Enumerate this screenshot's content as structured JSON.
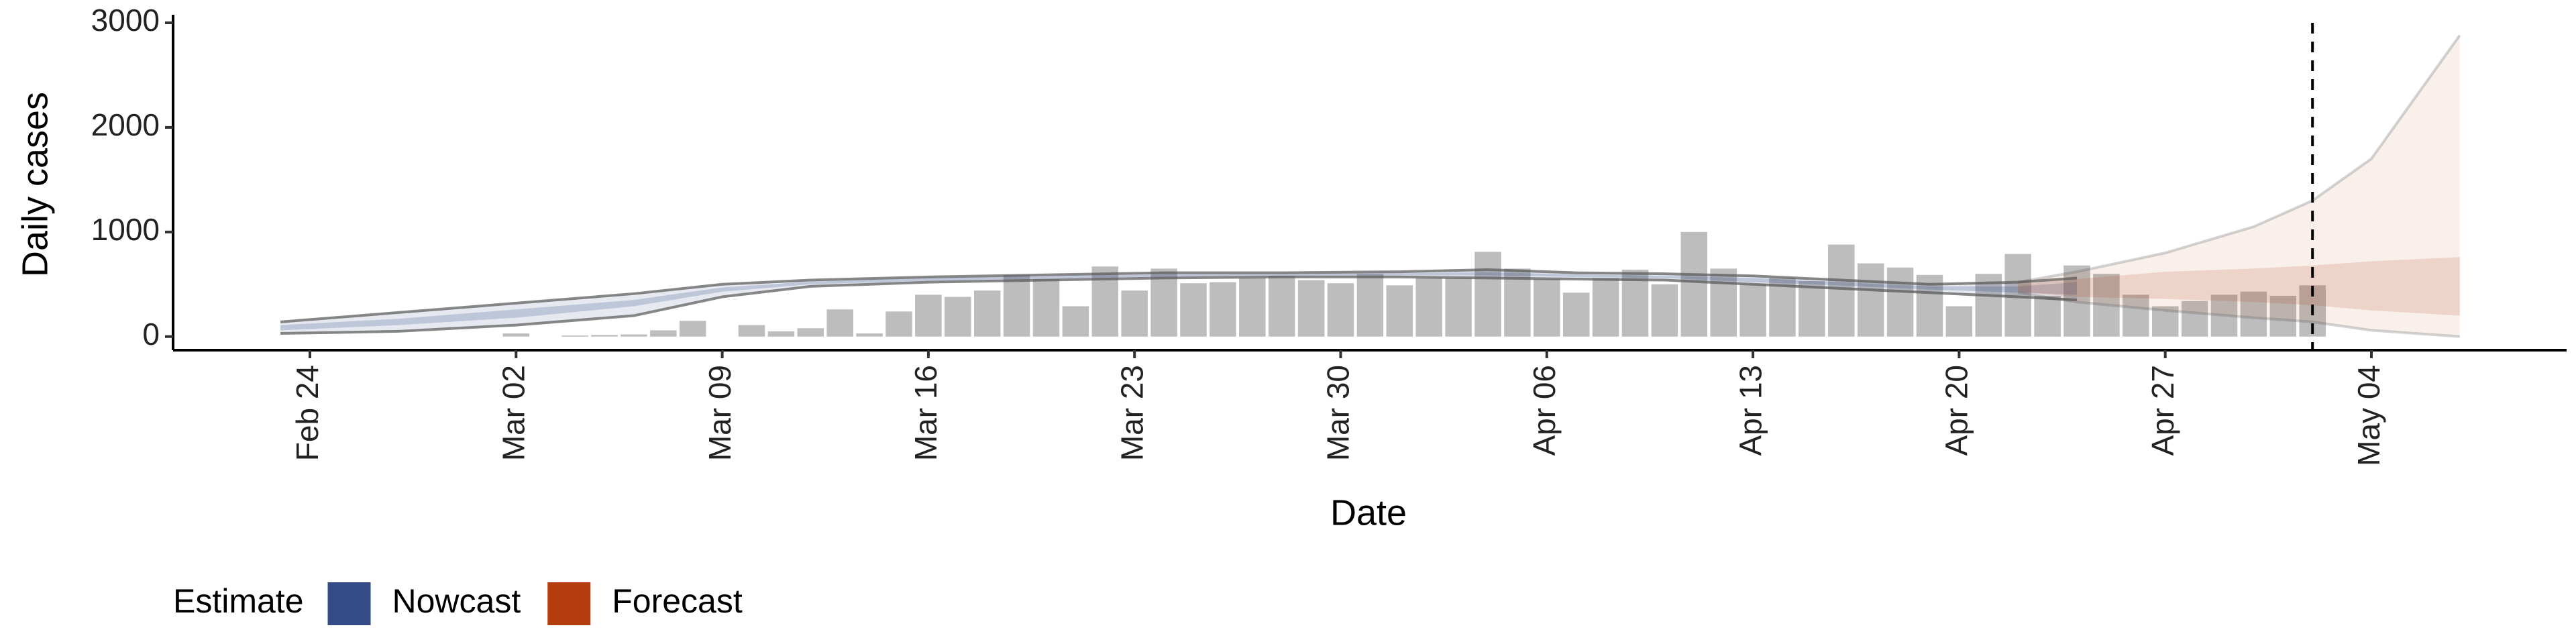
{
  "chart_data": {
    "type": "nowcast",
    "x_label": "Date",
    "y_label": "Daily cases",
    "ylim": [
      -130,
      3000
    ],
    "yticks": [
      0,
      1000,
      2000,
      3000
    ],
    "categories": [
      "Feb 22",
      "Feb 23",
      "Feb 24",
      "Feb 25",
      "Feb 26",
      "Feb 27",
      "Feb 28",
      "Feb 29",
      "Mar 01",
      "Mar 02",
      "Mar 03",
      "Mar 04",
      "Mar 05",
      "Mar 06",
      "Mar 07",
      "Mar 08",
      "Mar 09",
      "Mar 10",
      "Mar 11",
      "Mar 12",
      "Mar 13",
      "Mar 14",
      "Mar 15",
      "Mar 16",
      "Mar 17",
      "Mar 18",
      "Mar 19",
      "Mar 20",
      "Mar 21",
      "Mar 22",
      "Mar 23",
      "Mar 24",
      "Mar 25",
      "Mar 26",
      "Mar 27",
      "Mar 28",
      "Mar 29",
      "Mar 30",
      "Mar 31",
      "Apr 01",
      "Apr 02",
      "Apr 03",
      "Apr 04",
      "Apr 05",
      "Apr 06",
      "Apr 07",
      "Apr 08",
      "Apr 09",
      "Apr 10",
      "Apr 11",
      "Apr 12",
      "Apr 13",
      "Apr 14",
      "Apr 15",
      "Apr 16",
      "Apr 17",
      "Apr 18",
      "Apr 19",
      "Apr 20",
      "Apr 21",
      "Apr 22",
      "Apr 23",
      "Apr 24",
      "Apr 25",
      "Apr 26",
      "Apr 27",
      "Apr 28",
      "Apr 29",
      "Apr 30",
      "May 01",
      "May 02",
      "May 03",
      "May 04",
      "May 05",
      "May 06",
      "May 07",
      "May 08"
    ],
    "xticks": [
      "Feb 24",
      "Mar 02",
      "Mar 09",
      "Mar 16",
      "Mar 23",
      "Mar 30",
      "Apr 06",
      "Apr 13",
      "Apr 20",
      "Apr 27",
      "May 04"
    ],
    "bar_color": "#bdbdbd",
    "values": [
      null,
      null,
      null,
      null,
      null,
      null,
      null,
      null,
      null,
      30,
      null,
      10,
      15,
      20,
      60,
      150,
      null,
      110,
      50,
      80,
      260,
      30,
      240,
      400,
      380,
      440,
      590,
      550,
      290,
      670,
      440,
      650,
      510,
      520,
      560,
      580,
      540,
      510,
      600,
      490,
      560,
      560,
      810,
      650,
      550,
      420,
      560,
      640,
      500,
      1000,
      650,
      500,
      560,
      530,
      880,
      700,
      660,
      590,
      290,
      600,
      790,
      390,
      680,
      600,
      400,
      290,
      340,
      400,
      430,
      390,
      490,
      null,
      null,
      null,
      null,
      null,
      null
    ],
    "vline": "May 02",
    "legend_title": "Estimate",
    "series": [
      {
        "name": "Nowcast",
        "color": "#344b87",
        "x": [
          "Feb 23",
          "Feb 27",
          "Mar 02",
          "Mar 06",
          "Mar 09",
          "Mar 12",
          "Mar 16",
          "Mar 20",
          "Mar 24",
          "Mar 28",
          "Apr 01",
          "Apr 04",
          "Apr 07",
          "Apr 10",
          "Apr 13",
          "Apr 16",
          "Apr 19",
          "Apr 22",
          "Apr 24"
        ],
        "lower": [
          30,
          50,
          110,
          200,
          380,
          480,
          520,
          540,
          560,
          570,
          570,
          560,
          550,
          540,
          500,
          460,
          420,
          380,
          350
        ],
        "upper": [
          140,
          230,
          320,
          410,
          500,
          540,
          570,
          590,
          610,
          610,
          620,
          640,
          610,
          600,
          580,
          540,
          500,
          520,
          560
        ],
        "inner_lower": [
          60,
          110,
          180,
          290,
          430,
          500,
          535,
          555,
          575,
          580,
          585,
          585,
          570,
          560,
          520,
          490,
          450,
          420,
          400
        ],
        "inner_upper": [
          110,
          170,
          260,
          350,
          470,
          525,
          560,
          575,
          595,
          600,
          605,
          615,
          595,
          580,
          560,
          520,
          480,
          480,
          520
        ]
      },
      {
        "name": "Forecast",
        "color": "#b33d0c",
        "x": [
          "Apr 22",
          "Apr 24",
          "Apr 27",
          "Apr 30",
          "May 02",
          "May 04",
          "May 07"
        ],
        "lower": [
          420,
          330,
          250,
          180,
          140,
          60,
          0
        ],
        "upper": [
          520,
          620,
          800,
          1050,
          1300,
          1700,
          2880
        ],
        "inner_lower": [
          430,
          380,
          360,
          330,
          300,
          250,
          200
        ],
        "inner_upper": [
          500,
          550,
          620,
          650,
          680,
          720,
          760
        ]
      }
    ]
  }
}
